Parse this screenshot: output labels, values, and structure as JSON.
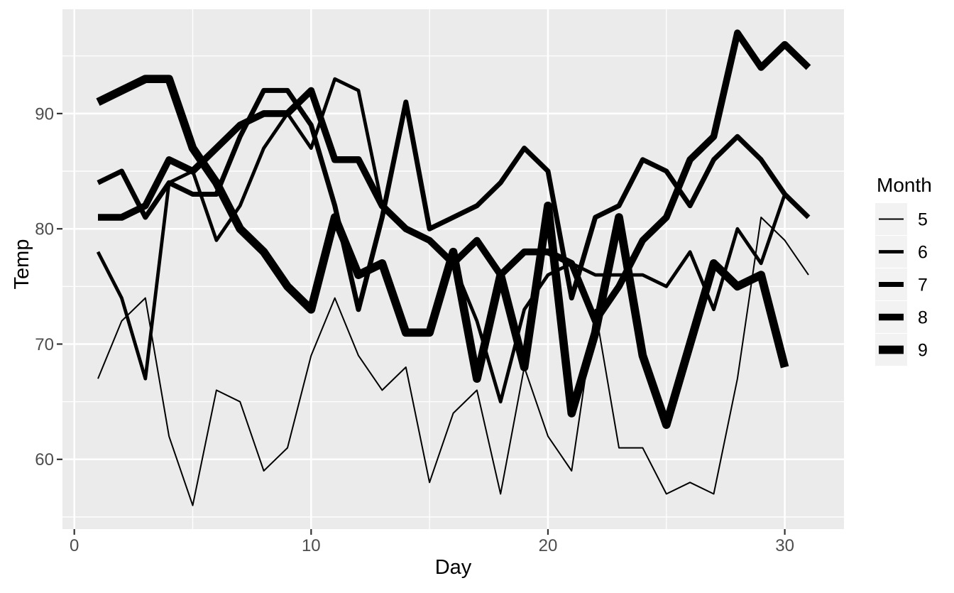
{
  "figure": {
    "background": "#FFFFFF"
  },
  "chart_data": {
    "type": "line",
    "title": "",
    "xlabel": "Day",
    "ylabel": "Temp",
    "legend_position": "right",
    "grid": true,
    "xlim": [
      -0.5,
      32.5
    ],
    "ylim": [
      53.95,
      99.05
    ],
    "x_ticks": [
      0,
      10,
      20,
      30
    ],
    "x_minor": [
      5,
      15,
      25
    ],
    "y_ticks": [
      60,
      70,
      80,
      90
    ],
    "y_minor": [
      55,
      65,
      75,
      85,
      95
    ],
    "colors": {
      "panel_bg": "#EBEBEB",
      "grid": "#FFFFFF",
      "line": "#000000",
      "axis_text": "#4D4D4D",
      "tick_mark": "#333333",
      "title_text": "#000000",
      "legend_key_bg": "#F2F2F2"
    },
    "legend": {
      "title": "Month",
      "items": [
        {
          "label": "5",
          "line_width": 2
        },
        {
          "label": "6",
          "line_width": 4.8
        },
        {
          "label": "7",
          "line_width": 7
        },
        {
          "label": "8",
          "line_width": 9.6
        },
        {
          "label": "9",
          "line_width": 11.7
        }
      ]
    },
    "series": [
      {
        "name": "5",
        "month": 5,
        "line_width": 2,
        "x": [
          1,
          2,
          3,
          4,
          5,
          6,
          7,
          8,
          9,
          10,
          11,
          12,
          13,
          14,
          15,
          16,
          17,
          18,
          19,
          20,
          21,
          22,
          23,
          24,
          25,
          26,
          27,
          28,
          29,
          30,
          31
        ],
        "y": [
          67,
          72,
          74,
          62,
          56,
          66,
          65,
          59,
          61,
          69,
          74,
          69,
          66,
          68,
          58,
          64,
          66,
          57,
          68,
          62,
          59,
          73,
          61,
          61,
          57,
          58,
          57,
          67,
          81,
          79,
          76
        ]
      },
      {
        "name": "6",
        "month": 6,
        "line_width": 4.8,
        "x": [
          1,
          2,
          3,
          4,
          5,
          6,
          7,
          8,
          9,
          10,
          11,
          12,
          13,
          14,
          15,
          16,
          17,
          18,
          19,
          20,
          21,
          22,
          23,
          24,
          25,
          26,
          27,
          28,
          29,
          30
        ],
        "y": [
          78,
          74,
          67,
          84,
          85,
          79,
          82,
          87,
          90,
          87,
          93,
          92,
          82,
          80,
          79,
          77,
          72,
          65,
          73,
          76,
          77,
          76,
          76,
          76,
          75,
          78,
          73,
          80,
          77,
          83
        ]
      },
      {
        "name": "7",
        "month": 7,
        "line_width": 7,
        "x": [
          1,
          2,
          3,
          4,
          5,
          6,
          7,
          8,
          9,
          10,
          11,
          12,
          13,
          14,
          15,
          16,
          17,
          18,
          19,
          20,
          21,
          22,
          23,
          24,
          25,
          26,
          27,
          28,
          29,
          30,
          31
        ],
        "y": [
          84,
          85,
          81,
          84,
          83,
          83,
          88,
          92,
          92,
          89,
          82,
          73,
          81,
          91,
          80,
          81,
          82,
          84,
          87,
          85,
          74,
          81,
          82,
          86,
          85,
          82,
          86,
          88,
          86,
          83,
          81
        ]
      },
      {
        "name": "8",
        "month": 8,
        "line_width": 9.6,
        "x": [
          1,
          2,
          3,
          4,
          5,
          6,
          7,
          8,
          9,
          10,
          11,
          12,
          13,
          14,
          15,
          16,
          17,
          18,
          19,
          20,
          21,
          22,
          23,
          24,
          25,
          26,
          27,
          28,
          29,
          30,
          31
        ],
        "y": [
          81,
          81,
          82,
          86,
          85,
          87,
          89,
          90,
          90,
          92,
          86,
          86,
          82,
          80,
          79,
          77,
          79,
          76,
          78,
          78,
          77,
          72,
          75,
          79,
          81,
          86,
          88,
          97,
          94,
          96,
          94
        ]
      },
      {
        "name": "9",
        "month": 9,
        "line_width": 11.7,
        "x": [
          1,
          2,
          3,
          4,
          5,
          6,
          7,
          8,
          9,
          10,
          11,
          12,
          13,
          14,
          15,
          16,
          17,
          18,
          19,
          20,
          21,
          22,
          23,
          24,
          25,
          26,
          27,
          28,
          29,
          30
        ],
        "y": [
          91,
          92,
          93,
          93,
          87,
          84,
          80,
          78,
          75,
          73,
          81,
          76,
          77,
          71,
          71,
          78,
          67,
          76,
          68,
          82,
          64,
          71,
          81,
          69,
          63,
          70,
          77,
          75,
          76,
          68
        ]
      }
    ]
  }
}
